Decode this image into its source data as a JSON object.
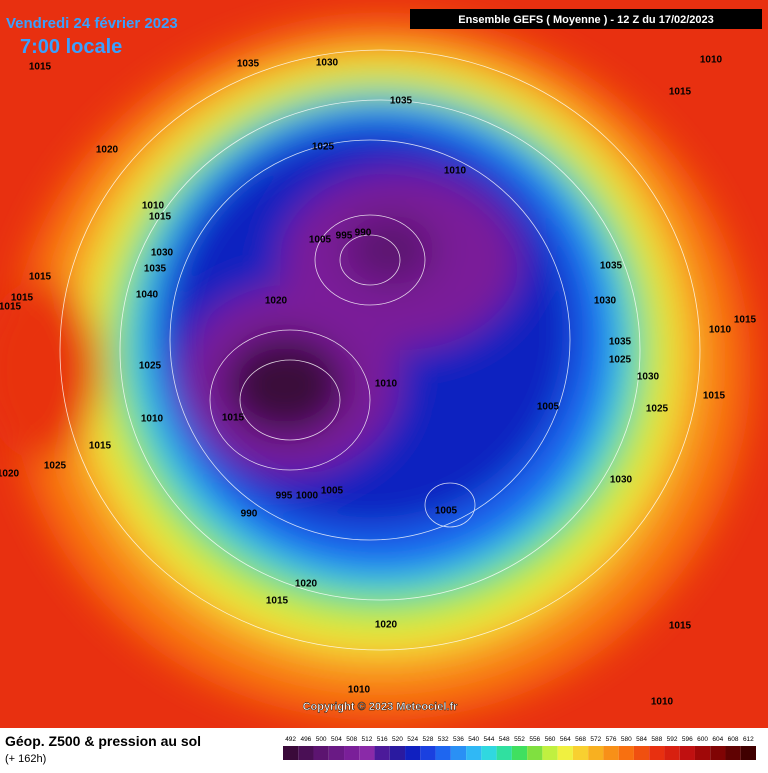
{
  "header": {
    "date": "Vendredi 24 février 2023",
    "time": "7:00 locale",
    "model": "Ensemble GEFS  ( Moyenne )  -  12 Z du 17/02/2023"
  },
  "isobar_labels": [
    "1015",
    "1035",
    "1030",
    "1010",
    "1015",
    "1035",
    "1020",
    "1025",
    "1010",
    "1010",
    "1015",
    "990",
    "1005",
    "995",
    "1030",
    "1035",
    "1035",
    "1015",
    "1015",
    "1015",
    "1040",
    "1020",
    "1030",
    "1015",
    "1010",
    "1035",
    "1025",
    "1025",
    "1030",
    "1010",
    "1015",
    "1005",
    "1025",
    "1010",
    "1015",
    "1015",
    "1025",
    "1020",
    "1030",
    "995",
    "1000",
    "1005",
    "1005",
    "990",
    "1020",
    "1015",
    "1020",
    "1015",
    "1010",
    "1010"
  ],
  "copyright": "Copyright © 2023 Meteociel.fr",
  "footer": {
    "title": "Géop. Z500 & pression au sol",
    "lead": "(+ 162h)"
  },
  "legend": {
    "values": [
      492,
      496,
      500,
      504,
      508,
      512,
      516,
      520,
      524,
      528,
      532,
      536,
      540,
      544,
      548,
      552,
      556,
      560,
      564,
      568,
      572,
      576,
      580,
      584,
      588,
      592,
      596,
      600,
      604,
      608,
      612
    ],
    "colors": [
      "#3a0a3a",
      "#4a0f55",
      "#5c1470",
      "#6a1a85",
      "#7a1f99",
      "#8a2aa8",
      "#4c1a9a",
      "#2a1aa0",
      "#1020c0",
      "#1a40e0",
      "#1e66f0",
      "#2a90f5",
      "#30b8f5",
      "#30d8e0",
      "#30e0a0",
      "#40e060",
      "#80e040",
      "#c0f040",
      "#f0f040",
      "#f8d030",
      "#f8b020",
      "#f89018",
      "#f87010",
      "#f05010",
      "#e83010",
      "#d82010",
      "#c01010",
      "#a00808",
      "#800404",
      "#600202",
      "#400000"
    ]
  }
}
